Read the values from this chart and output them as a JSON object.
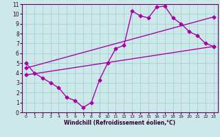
{
  "xlabel": "Windchill (Refroidissement éolien,°C)",
  "xlim": [
    -0.5,
    23.5
  ],
  "ylim": [
    0,
    11
  ],
  "xticks": [
    0,
    1,
    2,
    3,
    4,
    5,
    6,
    7,
    8,
    9,
    10,
    11,
    12,
    13,
    14,
    15,
    16,
    17,
    18,
    19,
    20,
    21,
    22,
    23
  ],
  "yticks": [
    0,
    1,
    2,
    3,
    4,
    5,
    6,
    7,
    8,
    9,
    10,
    11
  ],
  "background_color": "#cce8e8",
  "line_color": "#aa00aa",
  "grid_color": "#99cccc",
  "line1_x": [
    0,
    1,
    2,
    3,
    4,
    5,
    6,
    7,
    8,
    9,
    10,
    11,
    12,
    13,
    14,
    15,
    16,
    17,
    18,
    19,
    20,
    21,
    22,
    23
  ],
  "line1_y": [
    5.0,
    4.0,
    3.5,
    3.0,
    2.5,
    1.5,
    1.2,
    0.5,
    1.0,
    3.3,
    5.0,
    6.5,
    6.8,
    10.3,
    9.8,
    9.6,
    10.7,
    10.8,
    9.6,
    9.0,
    8.2,
    7.8,
    7.0,
    6.7
  ],
  "line2_x": [
    0,
    23
  ],
  "line2_y": [
    4.5,
    9.7
  ],
  "line3_x": [
    0,
    23
  ],
  "line3_y": [
    3.8,
    6.7
  ],
  "marker": "D",
  "markersize": 2.5,
  "linewidth": 1.0
}
